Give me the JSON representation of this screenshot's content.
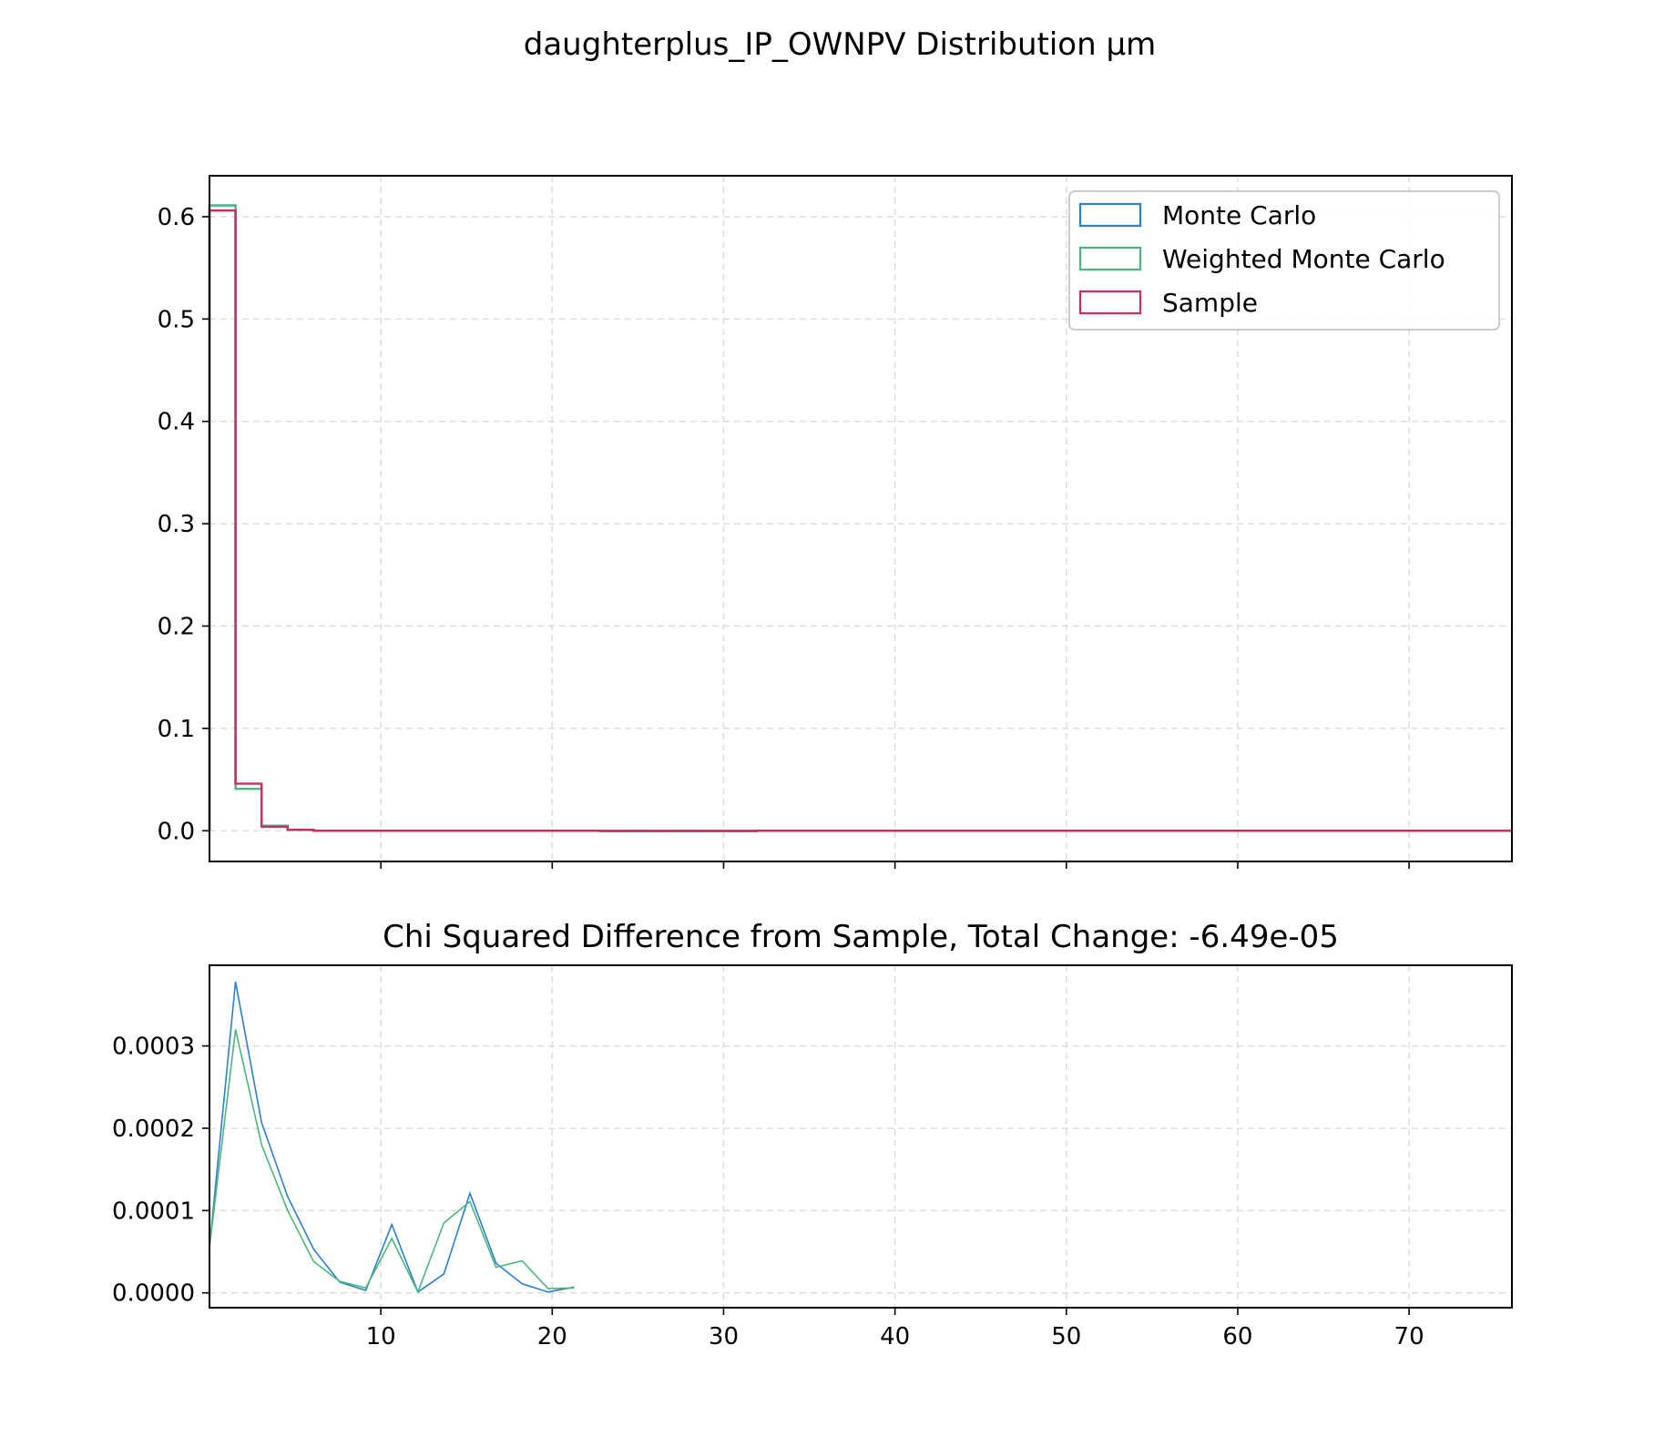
{
  "figure": {
    "title": "daughterplus_IP_OWNPV Distribution μm"
  },
  "colors": {
    "monte_carlo": "#2a7fd4",
    "weighted_monte_carlo": "#4cb87a",
    "sample": "#d02a5e",
    "grid": "#dddddd",
    "axes": "#000000"
  },
  "chart_data": [
    {
      "type": "line",
      "histtype": "step",
      "title": "",
      "xlabel": "",
      "ylabel": "",
      "xlim": [
        0,
        76
      ],
      "ylim": [
        -0.03,
        0.64
      ],
      "yticks": [
        0.0,
        0.1,
        0.2,
        0.3,
        0.4,
        0.5,
        0.6
      ],
      "ytick_labels": [
        "0.0",
        "0.1",
        "0.2",
        "0.3",
        "0.4",
        "0.5",
        "0.6"
      ],
      "xticks": [
        10,
        20,
        30,
        40,
        50,
        60,
        70
      ],
      "grid": true,
      "legend_position": "upper-right",
      "bin_edges": [
        0,
        1.52,
        3.04,
        4.56,
        6.08,
        7.6,
        9.12,
        10.64,
        12.16,
        13.68,
        15.2,
        16.72,
        18.24,
        19.76,
        21.28,
        22.8,
        24.32,
        25.84,
        27.36,
        28.88,
        30.4,
        31.92,
        76
      ],
      "series": [
        {
          "name": "Monte Carlo",
          "color_key": "monte_carlo",
          "values": [
            0.611,
            0.041,
            0.005,
            0.001,
            0.0,
            0.0,
            0.0,
            0.0,
            0.0,
            0.0,
            0.0,
            0.0,
            0.0,
            0.0,
            0.0,
            -0.0005,
            -0.0003,
            -0.0005,
            -0.0003,
            -0.0005,
            -0.0005,
            0.0
          ]
        },
        {
          "name": "Weighted Monte Carlo",
          "color_key": "weighted_monte_carlo",
          "values": [
            0.611,
            0.041,
            0.005,
            0.001,
            0.0,
            0.0,
            0.0,
            0.0,
            0.0,
            0.0,
            0.0,
            0.0,
            0.0,
            0.0,
            0.0,
            -0.0005,
            -0.0003,
            -0.0005,
            -0.0003,
            -0.0005,
            -0.0005,
            0.0
          ]
        },
        {
          "name": "Sample",
          "color_key": "sample",
          "values": [
            0.606,
            0.046,
            0.004,
            0.001,
            0.0,
            0.0,
            0.0,
            0.0,
            0.0,
            0.0,
            0.0,
            0.0,
            0.0,
            0.0,
            0.0,
            0.0,
            0.0,
            0.0,
            0.0,
            0.0,
            0.0,
            0.0
          ]
        }
      ]
    },
    {
      "type": "line",
      "title": "Chi Squared Difference from Sample, Total Change: -6.49e-05",
      "xlabel": "",
      "ylabel": "",
      "xlim": [
        0,
        76
      ],
      "ylim": [
        -1.8e-05,
        0.000398
      ],
      "yticks": [
        0.0,
        0.0001,
        0.0002,
        0.0003
      ],
      "ytick_labels": [
        "0.0000",
        "0.0001",
        "0.0002",
        "0.0003"
      ],
      "xticks": [
        10,
        20,
        30,
        40,
        50,
        60,
        70
      ],
      "xtick_labels": [
        "10",
        "20",
        "30",
        "40",
        "50",
        "60",
        "70"
      ],
      "grid": true,
      "x": [
        0,
        1.52,
        3.04,
        4.56,
        6.08,
        7.6,
        9.12,
        10.64,
        12.16,
        13.68,
        15.2,
        16.72,
        18.24,
        19.76,
        21.28
      ],
      "series": [
        {
          "name": "Monte Carlo",
          "color_key": "monte_carlo",
          "values": [
            5.5e-05,
            0.000378,
            0.000207,
            0.000117,
            5.3e-05,
            1.3e-05,
            3e-06,
            8.3e-05,
            1e-06,
            2.3e-05,
            0.000121,
            3.6e-05,
            1.1e-05,
            1e-06,
            7e-06
          ]
        },
        {
          "name": "Weighted Monte Carlo",
          "color_key": "weighted_monte_carlo",
          "values": [
            5.5e-05,
            0.00032,
            0.00018,
            0.0001,
            3.8e-05,
            1.4e-05,
            6e-06,
            6.6e-05,
            1e-06,
            8.5e-05,
            0.000111,
            3.1e-05,
            3.9e-05,
            5e-06,
            6e-06
          ]
        }
      ]
    }
  ]
}
